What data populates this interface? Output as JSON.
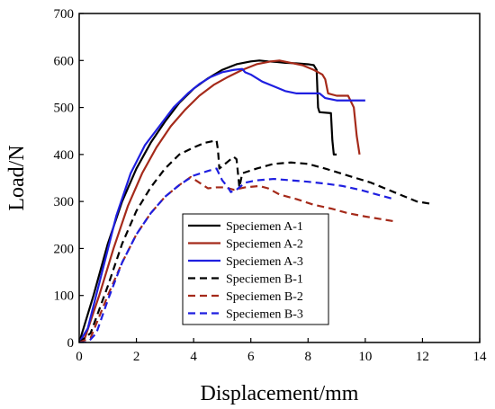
{
  "chart_data": {
    "type": "line",
    "title": "",
    "xlabel": "Displacement/mm",
    "ylabel": "Load/N",
    "xlim": [
      0,
      14
    ],
    "ylim": [
      0,
      700
    ],
    "xticks": [
      0,
      2,
      4,
      6,
      8,
      10,
      12,
      14
    ],
    "yticks": [
      0,
      100,
      200,
      300,
      400,
      500,
      600,
      700
    ],
    "grid": false,
    "legend_position": "bottom-center",
    "series": [
      {
        "name": "Speciemen A-1",
        "color": "#000000",
        "dash": "solid",
        "x": [
          0,
          0.5,
          1.0,
          1.5,
          2.0,
          2.5,
          3.0,
          3.5,
          4.0,
          4.5,
          5.0,
          5.5,
          6.0,
          6.3,
          6.6,
          6.9,
          7.2,
          7.6,
          8.0,
          8.2,
          8.3,
          8.35,
          8.4,
          8.8,
          8.85,
          8.9,
          9.0
        ],
        "y": [
          0,
          100,
          210,
          300,
          370,
          425,
          470,
          510,
          540,
          562,
          580,
          592,
          598,
          600,
          598,
          597,
          595,
          594,
          592,
          590,
          580,
          500,
          490,
          488,
          430,
          400,
          400
        ]
      },
      {
        "name": "Speciemen A-2",
        "color": "#a52a1a",
        "dash": "solid",
        "x": [
          0,
          0.2,
          0.7,
          1.2,
          1.7,
          2.2,
          2.7,
          3.2,
          3.7,
          4.2,
          4.7,
          5.2,
          5.7,
          6.2,
          6.7,
          7.0,
          7.4,
          7.8,
          8.2,
          8.5,
          8.6,
          8.7,
          9.0,
          9.4,
          9.6,
          9.7,
          9.8
        ],
        "y": [
          0,
          10,
          100,
          200,
          290,
          360,
          415,
          460,
          495,
          525,
          548,
          565,
          580,
          592,
          598,
          600,
          595,
          590,
          580,
          570,
          560,
          530,
          525,
          525,
          500,
          440,
          400
        ]
      },
      {
        "name": "Speciemen A-3",
        "color": "#1f1fe0",
        "dash": "solid",
        "x": [
          0,
          0.3,
          0.8,
          1.3,
          1.8,
          2.3,
          2.8,
          3.3,
          3.8,
          4.2,
          4.6,
          5.0,
          5.4,
          5.7,
          5.8,
          6.0,
          6.4,
          6.8,
          7.2,
          7.6,
          8.0,
          8.4,
          8.6,
          9.0,
          9.5,
          9.8,
          10.0
        ],
        "y": [
          0,
          30,
          150,
          270,
          360,
          420,
          460,
          500,
          530,
          550,
          565,
          575,
          580,
          582,
          575,
          570,
          555,
          545,
          535,
          530,
          530,
          530,
          520,
          515,
          515,
          515,
          515
        ]
      },
      {
        "name": "Speciemen B-1",
        "color": "#000000",
        "dash": "dashed",
        "x": [
          0,
          0.4,
          1.0,
          1.5,
          2.0,
          2.5,
          3.0,
          3.5,
          4.0,
          4.4,
          4.8,
          4.85,
          4.9,
          5.2,
          5.4,
          5.5,
          5.6,
          5.7,
          6.2,
          6.8,
          7.4,
          8.0,
          8.6,
          9.4,
          10.2,
          11.0,
          11.8,
          12.3
        ],
        "y": [
          0,
          20,
          120,
          210,
          280,
          330,
          370,
          400,
          415,
          425,
          430,
          410,
          370,
          385,
          395,
          390,
          330,
          360,
          370,
          380,
          383,
          380,
          370,
          355,
          340,
          320,
          300,
          295
        ]
      },
      {
        "name": "Speciemen B-2",
        "color": "#a52a1a",
        "dash": "dashed",
        "x": [
          0,
          0.4,
          1.0,
          1.5,
          2.0,
          2.5,
          3.0,
          3.5,
          3.9,
          4.2,
          4.5,
          4.8,
          5.1,
          5.4,
          5.8,
          6.3,
          6.6,
          7.0,
          7.6,
          8.2,
          8.8,
          9.4,
          10.0,
          10.6,
          11.0
        ],
        "y": [
          0,
          10,
          100,
          170,
          230,
          275,
          310,
          335,
          352,
          340,
          328,
          330,
          330,
          325,
          330,
          333,
          328,
          315,
          305,
          293,
          285,
          275,
          268,
          262,
          258
        ]
      },
      {
        "name": "Speciemen B-3",
        "color": "#1f1fe0",
        "dash": "dashed",
        "x": [
          0,
          0.3,
          0.6,
          1.0,
          1.5,
          2.0,
          2.5,
          3.0,
          3.5,
          4.0,
          4.5,
          4.8,
          5.0,
          5.2,
          5.3,
          5.5,
          5.8,
          6.2,
          6.8,
          7.4,
          8.0,
          8.6,
          9.2,
          9.8,
          10.4,
          11.0
        ],
        "y": [
          0,
          0,
          20,
          90,
          170,
          230,
          275,
          310,
          335,
          355,
          365,
          370,
          345,
          330,
          320,
          325,
          340,
          345,
          348,
          345,
          342,
          338,
          333,
          325,
          315,
          305
        ]
      }
    ]
  }
}
